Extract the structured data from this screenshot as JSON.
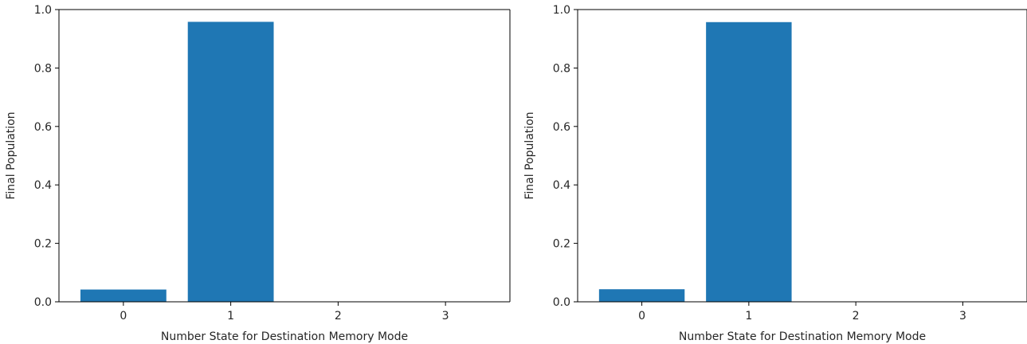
{
  "chart_data": [
    {
      "type": "bar",
      "categories": [
        "0",
        "1",
        "2",
        "3"
      ],
      "values": [
        0.042,
        0.958,
        0.0,
        0.0
      ],
      "xlabel": "Number State for Destination Memory Mode",
      "ylabel": "Final Population",
      "yticks": [
        "0.0",
        "0.2",
        "0.4",
        "0.6",
        "0.8",
        "1.0"
      ],
      "ylim": [
        0,
        1.0
      ],
      "grid": false,
      "bar_color": "#1f77b4"
    },
    {
      "type": "bar",
      "categories": [
        "0",
        "1",
        "2",
        "3"
      ],
      "values": [
        0.043,
        0.957,
        0.0,
        0.0
      ],
      "xlabel": "Number State for Destination Memory Mode",
      "ylabel": "Final Population",
      "yticks": [
        "0.0",
        "0.2",
        "0.4",
        "0.6",
        "0.8",
        "1.0"
      ],
      "ylim": [
        0,
        1.0
      ],
      "grid": false,
      "bar_color": "#1f77b4"
    }
  ]
}
